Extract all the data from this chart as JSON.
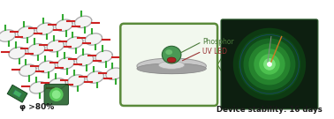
{
  "bg_color": "#ffffff",
  "phi_text": "φ >80%",
  "stability_text": "Device stability: 16 days",
  "phosphor_label": "Phosphor",
  "uvled_label": "UV LED",
  "box_edge_color": "#5a8a3a",
  "box_bg": "#f2f8ee",
  "mof_ring_color": "#aaaaaa",
  "mof_red": "#cc2222",
  "mof_green": "#33aa33",
  "led_disk_color": "#b0b0b0",
  "phosphor_dome_color": "#55aa55",
  "led_chip_color": "#993333",
  "glow_photo_bg": "#0d1f10",
  "wire_color": "#cc7722",
  "text_color": "#1a1a1a"
}
